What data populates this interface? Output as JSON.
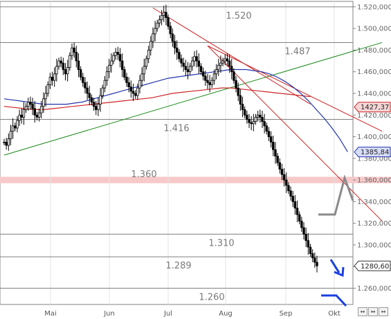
{
  "chart_data": {
    "type": "candlestick",
    "ylim": [
      1245,
      1525
    ],
    "y_ticks": [
      "1.520,000",
      "1.500,000",
      "1.480,000",
      "1.460,000",
      "1.440,000",
      "1.420,000",
      "1.400,000",
      "1.380,000",
      "1.360,000",
      "1.340,000",
      "1.320,000",
      "1.300,000",
      "1.280,000",
      "1.260,000"
    ],
    "y_tick_values": [
      1520,
      1500,
      1480,
      1460,
      1440,
      1420,
      1400,
      1380,
      1360,
      1340,
      1320,
      1300,
      1280,
      1260
    ],
    "x_ticks": [
      "Mai",
      "Jun",
      "Jul",
      "Aug",
      "Sep",
      "Okt"
    ],
    "levels": [
      {
        "label": "1.520",
        "value": 1520
      },
      {
        "label": "1.487",
        "value": 1487
      },
      {
        "label": "1.416",
        "value": 1416
      },
      {
        "label": "1.310",
        "value": 1310
      },
      {
        "label": "1.289",
        "value": 1289
      },
      {
        "label": "1.260",
        "value": 1260
      }
    ],
    "zone": {
      "label": "1.360",
      "from": 1357,
      "to": 1363,
      "color": "#f7c9c9"
    },
    "price_tags": [
      {
        "label": "1427,37",
        "value": 1427.37,
        "style": "red"
      },
      {
        "label": "1385,84",
        "value": 1385.84,
        "style": "blue"
      },
      {
        "label": "1280,60",
        "value": 1280.6,
        "style": "black"
      }
    ],
    "closes": [
      1395,
      1392,
      1398,
      1405,
      1410,
      1408,
      1415,
      1420,
      1418,
      1425,
      1428,
      1432,
      1430,
      1426,
      1420,
      1418,
      1422,
      1428,
      1435,
      1440,
      1448,
      1455,
      1452,
      1458,
      1465,
      1470,
      1468,
      1462,
      1458,
      1464,
      1475,
      1482,
      1478,
      1470,
      1462,
      1455,
      1450,
      1445,
      1440,
      1436,
      1432,
      1428,
      1425,
      1430,
      1438,
      1445,
      1452,
      1460,
      1466,
      1470,
      1475,
      1478,
      1476,
      1470,
      1462,
      1455,
      1450,
      1446,
      1442,
      1440,
      1438,
      1445,
      1452,
      1458,
      1465,
      1472,
      1480,
      1488,
      1495,
      1500,
      1505,
      1508,
      1512,
      1515,
      1510,
      1502,
      1495,
      1488,
      1482,
      1478,
      1472,
      1468,
      1465,
      1462,
      1460,
      1465,
      1470,
      1474,
      1470,
      1465,
      1460,
      1456,
      1452,
      1450,
      1448,
      1452,
      1458,
      1462,
      1466,
      1468,
      1470,
      1472,
      1470,
      1465,
      1460,
      1452,
      1445,
      1438,
      1430,
      1425,
      1420,
      1416,
      1413,
      1412,
      1414,
      1418,
      1420,
      1418,
      1414,
      1410,
      1405,
      1400,
      1395,
      1388,
      1382,
      1376,
      1370,
      1365,
      1360,
      1355,
      1350,
      1345,
      1340,
      1334,
      1328,
      1322,
      1316,
      1310,
      1304,
      1298,
      1292,
      1288,
      1284,
      1280.6
    ],
    "ma_blue": [
      1435,
      1434,
      1433,
      1432,
      1431,
      1430,
      1430,
      1430,
      1430,
      1431,
      1432,
      1434,
      1436,
      1438,
      1440,
      1442,
      1444,
      1446,
      1448,
      1450,
      1452,
      1454,
      1455,
      1456,
      1457,
      1458,
      1459,
      1460,
      1461,
      1462,
      1462,
      1462,
      1461,
      1460,
      1458,
      1455,
      1451,
      1446,
      1440,
      1433,
      1425,
      1417,
      1408,
      1398,
      1386
    ],
    "ma_red": [
      1428,
      1427,
      1426,
      1425,
      1425,
      1426,
      1427,
      1428,
      1429,
      1430,
      1431,
      1432,
      1433,
      1434,
      1435,
      1436,
      1438,
      1440,
      1441,
      1442,
      1443,
      1444,
      1445,
      1445,
      1444,
      1443,
      1442,
      1441,
      1440,
      1439,
      1438,
      1437
    ],
    "trendlines": [
      {
        "color": "#1b8a1b",
        "from": {
          "bar": 0,
          "value": 1383
        },
        "to": {
          "bar": 157,
          "value": 1487
        }
      },
      {
        "color": "#cc2222",
        "from": {
          "bar": 68,
          "value": 1519
        },
        "to": {
          "bar": 140,
          "value": 1430
        }
      },
      {
        "color": "#cc2222",
        "from": {
          "bar": 93,
          "value": 1484
        },
        "to": {
          "bar": 157,
          "value": 1405
        }
      },
      {
        "color": "#cc2222",
        "from": {
          "bar": 93,
          "value": 1484
        },
        "to": {
          "bar": 157,
          "value": 1322
        }
      }
    ]
  }
}
